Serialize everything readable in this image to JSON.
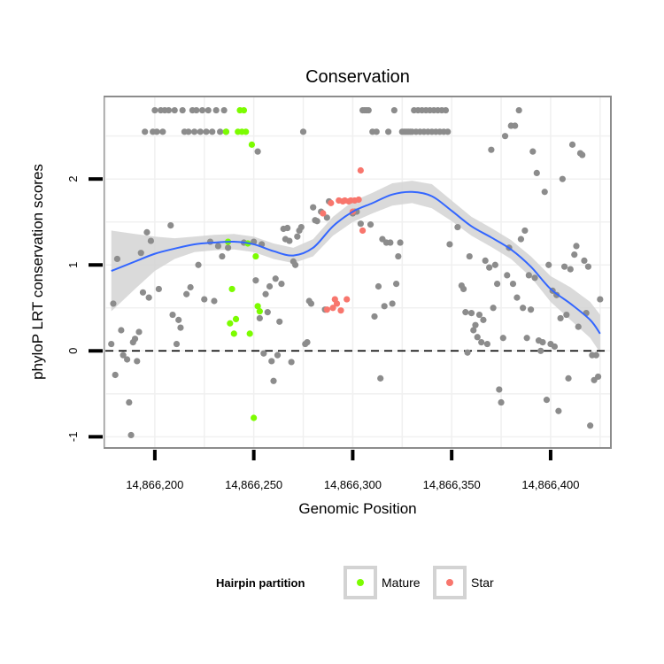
{
  "chart_data": {
    "type": "scatter",
    "title": "Conservation",
    "xlabel": "Genomic Position",
    "ylabel": "phyloP LRT conservation scores",
    "xlim": [
      14866175,
      14866430
    ],
    "ylim": [
      -1.12,
      2.95
    ],
    "x_ticks": [
      14866200,
      14866250,
      14866300,
      14866350,
      14866400
    ],
    "x_tick_labels": [
      "14,866,200",
      "14,866,250",
      "14,866,300",
      "14,866,350",
      "14,866,400"
    ],
    "y_ticks": [
      -1,
      0,
      1,
      2
    ],
    "y_tick_labels": [
      "-1",
      "0",
      "1",
      "2"
    ],
    "reference_line": {
      "y": 0,
      "style": "dashed"
    },
    "grid": true,
    "legend": {
      "title": "Hairpin partition",
      "position": "bottom",
      "entries": [
        {
          "label": "Mature",
          "color": "#7cfc00"
        },
        {
          "label": "Star",
          "color": "#f8766d"
        }
      ]
    },
    "colors": {
      "other": "#8c8c8c",
      "Mature": "#7cfc00",
      "Star": "#f8766d",
      "smooth": "#3366ff",
      "band": "#d3d3d3"
    },
    "series": [
      {
        "group": "other",
        "points": [
          [
            14866178,
            0.08
          ],
          [
            14866179,
            0.55
          ],
          [
            14866180,
            -0.28
          ],
          [
            14866181,
            1.07
          ],
          [
            14866183,
            0.24
          ],
          [
            14866184,
            -0.05
          ],
          [
            14866186,
            -0.1
          ],
          [
            14866187,
            -0.6
          ],
          [
            14866188,
            -0.98
          ],
          [
            14866189,
            0.1
          ],
          [
            14866190,
            0.14
          ],
          [
            14866191,
            -0.12
          ],
          [
            14866192,
            0.22
          ],
          [
            14866193,
            1.14
          ],
          [
            14866194,
            0.68
          ],
          [
            14866195,
            2.55
          ],
          [
            14866196,
            1.38
          ],
          [
            14866197,
            0.62
          ],
          [
            14866198,
            1.28
          ],
          [
            14866199,
            2.55
          ],
          [
            14866200,
            2.8
          ],
          [
            14866201,
            2.55
          ],
          [
            14866202,
            0.72
          ],
          [
            14866203,
            2.8
          ],
          [
            14866204,
            2.55
          ],
          [
            14866205,
            2.8
          ],
          [
            14866207,
            2.8
          ],
          [
            14866208,
            1.46
          ],
          [
            14866209,
            0.42
          ],
          [
            14866210,
            2.8
          ],
          [
            14866211,
            0.08
          ],
          [
            14866212,
            0.36
          ],
          [
            14866213,
            0.27
          ],
          [
            14866214,
            2.8
          ],
          [
            14866215,
            2.55
          ],
          [
            14866216,
            0.66
          ],
          [
            14866217,
            2.55
          ],
          [
            14866218,
            0.74
          ],
          [
            14866219,
            2.8
          ],
          [
            14866220,
            2.55
          ],
          [
            14866221,
            2.8
          ],
          [
            14866222,
            1.0
          ],
          [
            14866223,
            2.55
          ],
          [
            14866224,
            2.8
          ],
          [
            14866225,
            0.6
          ],
          [
            14866226,
            2.55
          ],
          [
            14866227,
            2.8
          ],
          [
            14866228,
            1.27
          ],
          [
            14866229,
            2.55
          ],
          [
            14866230,
            0.58
          ],
          [
            14866231,
            2.8
          ],
          [
            14866232,
            1.22
          ],
          [
            14866233,
            2.55
          ],
          [
            14866234,
            1.1
          ],
          [
            14866235,
            2.8
          ],
          [
            14866236,
            2.55
          ],
          [
            14866237,
            1.2
          ],
          [
            14866245,
            1.26
          ],
          [
            14866250,
            1.27
          ],
          [
            14866251,
            0.82
          ],
          [
            14866252,
            2.32
          ],
          [
            14866253,
            0.38
          ],
          [
            14866254,
            1.24
          ],
          [
            14866255,
            -0.03
          ],
          [
            14866256,
            0.66
          ],
          [
            14866257,
            0.45
          ],
          [
            14866258,
            0.75
          ],
          [
            14866259,
            -0.12
          ],
          [
            14866260,
            -0.35
          ],
          [
            14866261,
            0.84
          ],
          [
            14866262,
            -0.05
          ],
          [
            14866263,
            0.34
          ],
          [
            14866264,
            0.78
          ],
          [
            14866265,
            1.42
          ],
          [
            14866266,
            1.3
          ],
          [
            14866267,
            1.43
          ],
          [
            14866268,
            1.28
          ],
          [
            14866269,
            -0.13
          ],
          [
            14866270,
            1.04
          ],
          [
            14866271,
            1.0
          ],
          [
            14866272,
            1.33
          ],
          [
            14866273,
            1.4
          ],
          [
            14866274,
            1.44
          ],
          [
            14866275,
            2.55
          ],
          [
            14866276,
            0.08
          ],
          [
            14866277,
            0.1
          ],
          [
            14866278,
            0.58
          ],
          [
            14866279,
            0.55
          ],
          [
            14866280,
            1.67
          ],
          [
            14866281,
            1.52
          ],
          [
            14866282,
            1.51
          ],
          [
            14866284,
            1.62
          ],
          [
            14866286,
            0.48
          ],
          [
            14866287,
            1.55
          ],
          [
            14866288,
            1.74
          ],
          [
            14866300,
            1.6
          ],
          [
            14866301,
            1.62
          ],
          [
            14866302,
            1.62
          ],
          [
            14866304,
            1.48
          ],
          [
            14866305,
            2.8
          ],
          [
            14866306,
            2.8
          ],
          [
            14866307,
            2.8
          ],
          [
            14866308,
            2.8
          ],
          [
            14866309,
            1.47
          ],
          [
            14866310,
            2.55
          ],
          [
            14866311,
            0.4
          ],
          [
            14866312,
            2.55
          ],
          [
            14866313,
            0.75
          ],
          [
            14866314,
            -0.32
          ],
          [
            14866315,
            1.3
          ],
          [
            14866316,
            0.52
          ],
          [
            14866317,
            1.26
          ],
          [
            14866318,
            2.55
          ],
          [
            14866319,
            1.26
          ],
          [
            14866320,
            0.55
          ],
          [
            14866321,
            2.8
          ],
          [
            14866322,
            0.78
          ],
          [
            14866323,
            1.1
          ],
          [
            14866324,
            1.26
          ],
          [
            14866325,
            2.55
          ],
          [
            14866326,
            2.55
          ],
          [
            14866327,
            2.55
          ],
          [
            14866328,
            2.55
          ],
          [
            14866329,
            2.55
          ],
          [
            14866330,
            2.55
          ],
          [
            14866331,
            2.8
          ],
          [
            14866332,
            2.55
          ],
          [
            14866333,
            2.8
          ],
          [
            14866334,
            2.55
          ],
          [
            14866335,
            2.8
          ],
          [
            14866336,
            2.55
          ],
          [
            14866337,
            2.8
          ],
          [
            14866338,
            2.55
          ],
          [
            14866339,
            2.8
          ],
          [
            14866340,
            2.55
          ],
          [
            14866341,
            2.8
          ],
          [
            14866342,
            2.55
          ],
          [
            14866343,
            2.8
          ],
          [
            14866344,
            2.55
          ],
          [
            14866345,
            2.8
          ],
          [
            14866346,
            2.55
          ],
          [
            14866347,
            2.8
          ],
          [
            14866348,
            2.55
          ],
          [
            14866349,
            1.24
          ],
          [
            14866353,
            1.44
          ],
          [
            14866355,
            0.76
          ],
          [
            14866356,
            0.72
          ],
          [
            14866357,
            0.45
          ],
          [
            14866358,
            -0.02
          ],
          [
            14866359,
            1.1
          ],
          [
            14866360,
            0.44
          ],
          [
            14866361,
            0.24
          ],
          [
            14866362,
            0.3
          ],
          [
            14866363,
            0.16
          ],
          [
            14866364,
            0.42
          ],
          [
            14866365,
            0.1
          ],
          [
            14866366,
            0.36
          ],
          [
            14866367,
            1.05
          ],
          [
            14866368,
            0.08
          ],
          [
            14866369,
            0.97
          ],
          [
            14866370,
            2.34
          ],
          [
            14866371,
            0.5
          ],
          [
            14866372,
            1.0
          ],
          [
            14866373,
            0.78
          ],
          [
            14866374,
            -0.45
          ],
          [
            14866375,
            -0.6
          ],
          [
            14866376,
            0.15
          ],
          [
            14866377,
            2.5
          ],
          [
            14866378,
            0.88
          ],
          [
            14866379,
            1.2
          ],
          [
            14866380,
            2.62
          ],
          [
            14866381,
            0.78
          ],
          [
            14866382,
            2.62
          ],
          [
            14866383,
            0.62
          ],
          [
            14866384,
            2.8
          ],
          [
            14866385,
            1.3
          ],
          [
            14866386,
            0.5
          ],
          [
            14866387,
            1.4
          ],
          [
            14866388,
            0.15
          ],
          [
            14866389,
            0.88
          ],
          [
            14866390,
            0.48
          ],
          [
            14866391,
            2.32
          ],
          [
            14866392,
            0.85
          ],
          [
            14866393,
            2.07
          ],
          [
            14866394,
            0.12
          ],
          [
            14866395,
            0.0
          ],
          [
            14866396,
            0.1
          ],
          [
            14866397,
            1.85
          ],
          [
            14866398,
            -0.57
          ],
          [
            14866399,
            1.0
          ],
          [
            14866400,
            0.08
          ],
          [
            14866401,
            0.7
          ],
          [
            14866402,
            0.05
          ],
          [
            14866403,
            0.65
          ],
          [
            14866404,
            -0.7
          ],
          [
            14866405,
            0.38
          ],
          [
            14866406,
            2.0
          ],
          [
            14866407,
            0.98
          ],
          [
            14866408,
            0.42
          ],
          [
            14866409,
            -0.32
          ],
          [
            14866410,
            0.95
          ],
          [
            14866411,
            2.4
          ],
          [
            14866412,
            1.12
          ],
          [
            14866413,
            1.22
          ],
          [
            14866414,
            0.28
          ],
          [
            14866415,
            2.3
          ],
          [
            14866416,
            2.28
          ],
          [
            14866417,
            1.05
          ],
          [
            14866418,
            0.44
          ],
          [
            14866419,
            0.98
          ],
          [
            14866420,
            -0.87
          ],
          [
            14866421,
            -0.05
          ],
          [
            14866422,
            -0.34
          ],
          [
            14866423,
            -0.05
          ],
          [
            14866424,
            -0.3
          ],
          [
            14866425,
            0.6
          ]
        ]
      },
      {
        "group": "Mature",
        "name": "Mature",
        "points": [
          [
            14866236,
            2.55
          ],
          [
            14866237,
            1.27
          ],
          [
            14866238,
            0.32
          ],
          [
            14866239,
            0.72
          ],
          [
            14866240,
            0.2
          ],
          [
            14866241,
            0.37
          ],
          [
            14866242,
            2.55
          ],
          [
            14866243,
            2.8
          ],
          [
            14866244,
            2.55
          ],
          [
            14866245,
            2.8
          ],
          [
            14866246,
            2.55
          ],
          [
            14866247,
            1.25
          ],
          [
            14866248,
            0.2
          ],
          [
            14866249,
            2.4
          ],
          [
            14866250,
            -0.78
          ],
          [
            14866251,
            1.1
          ],
          [
            14866252,
            0.52
          ],
          [
            14866253,
            0.46
          ]
        ]
      },
      {
        "group": "Star",
        "name": "Star",
        "points": [
          [
            14866285,
            1.6
          ],
          [
            14866287,
            0.48
          ],
          [
            14866289,
            1.72
          ],
          [
            14866290,
            0.5
          ],
          [
            14866291,
            0.6
          ],
          [
            14866292,
            0.55
          ],
          [
            14866293,
            1.75
          ],
          [
            14866294,
            0.47
          ],
          [
            14866295,
            1.74
          ],
          [
            14866296,
            1.75
          ],
          [
            14866297,
            0.6
          ],
          [
            14866298,
            1.74
          ],
          [
            14866299,
            1.75
          ],
          [
            14866300,
            1.62
          ],
          [
            14866301,
            1.75
          ],
          [
            14866303,
            1.76
          ],
          [
            14866304,
            2.1
          ],
          [
            14866305,
            1.4
          ]
        ]
      }
    ],
    "smooth": {
      "x": [
        14866178,
        14866190,
        14866200,
        14866210,
        14866220,
        14866230,
        14866240,
        14866250,
        14866260,
        14866270,
        14866280,
        14866290,
        14866300,
        14866310,
        14866320,
        14866330,
        14866340,
        14866350,
        14866360,
        14866370,
        14866380,
        14866390,
        14866400,
        14866410,
        14866420,
        14866425
      ],
      "y": [
        0.93,
        1.04,
        1.13,
        1.19,
        1.24,
        1.26,
        1.27,
        1.24,
        1.16,
        1.11,
        1.2,
        1.45,
        1.62,
        1.72,
        1.82,
        1.85,
        1.8,
        1.63,
        1.45,
        1.32,
        1.18,
        0.98,
        0.72,
        0.55,
        0.36,
        0.2
      ],
      "ci_half_width": [
        0.47,
        0.32,
        0.2,
        0.12,
        0.09,
        0.09,
        0.09,
        0.09,
        0.09,
        0.09,
        0.1,
        0.11,
        0.12,
        0.12,
        0.13,
        0.13,
        0.14,
        0.12,
        0.11,
        0.11,
        0.11,
        0.12,
        0.15,
        0.19,
        0.21,
        0.22
      ]
    }
  }
}
